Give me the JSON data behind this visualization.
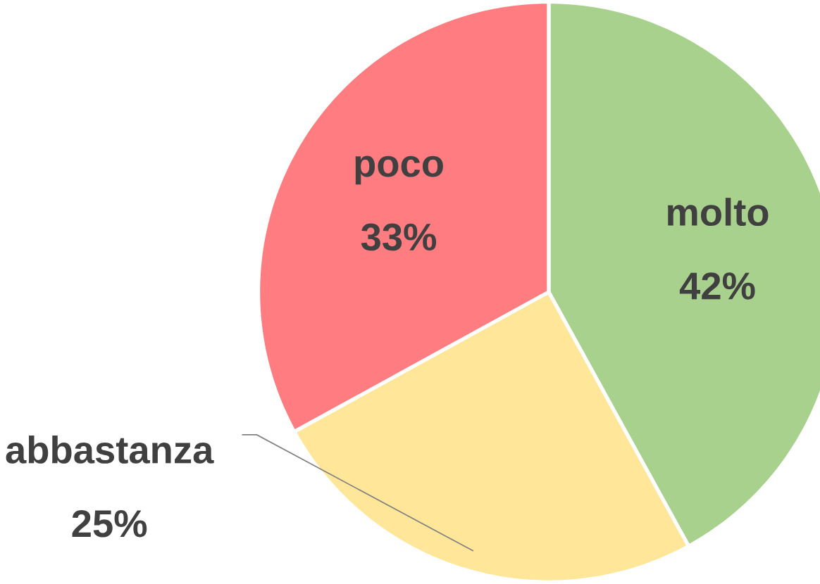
{
  "chart_data": {
    "type": "pie",
    "categories": [
      "molto",
      "abbastanza",
      "poco"
    ],
    "values": [
      42,
      25,
      33
    ],
    "value_labels": [
      "42%",
      "25%",
      "33%"
    ],
    "colors": [
      "#a9d18e",
      "#ffe699",
      "#ff7c80"
    ]
  }
}
